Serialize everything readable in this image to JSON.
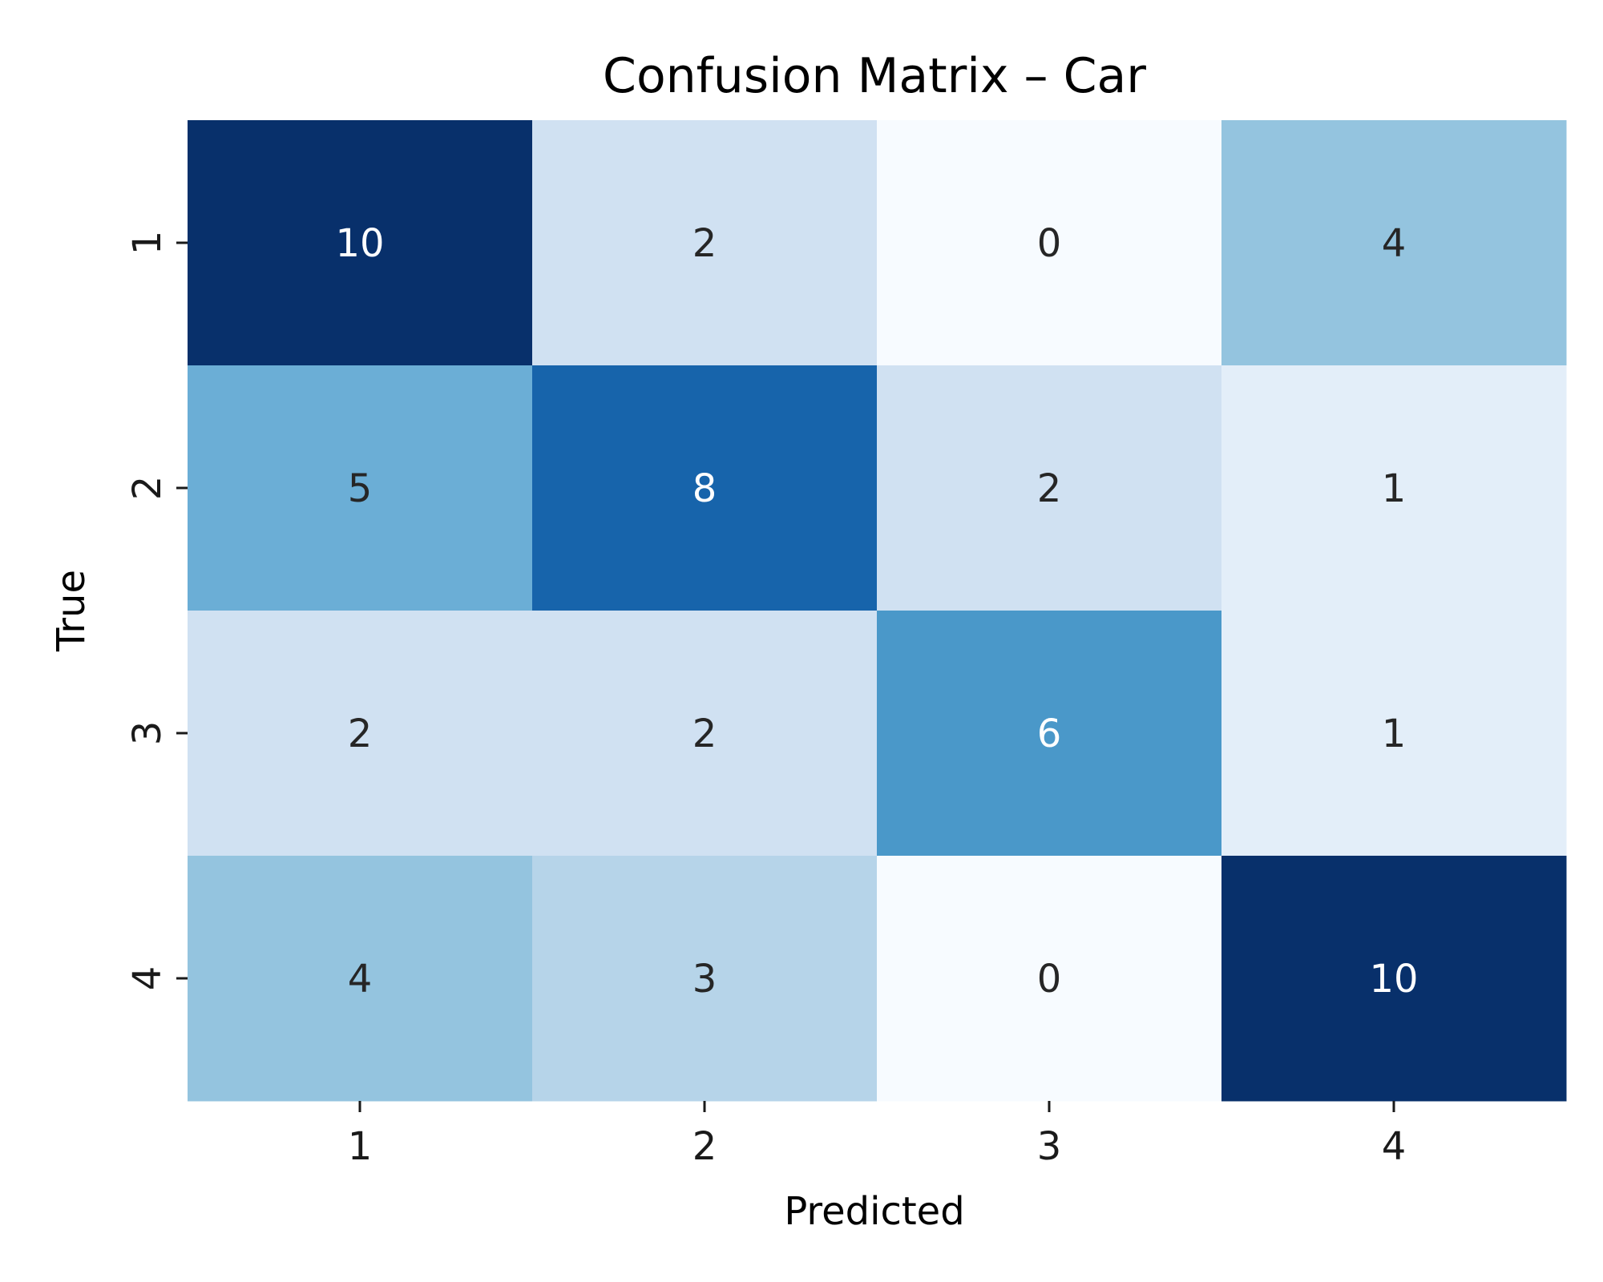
{
  "chart_data": {
    "type": "heatmap",
    "title": "Confusion Matrix – Car",
    "xlabel": "Predicted",
    "ylabel": "True",
    "x_categories": [
      "1",
      "2",
      "3",
      "4"
    ],
    "y_categories": [
      "1",
      "2",
      "3",
      "4"
    ],
    "values": [
      [
        10,
        2,
        0,
        4
      ],
      [
        5,
        8,
        2,
        1
      ],
      [
        2,
        2,
        6,
        1
      ],
      [
        4,
        3,
        0,
        10
      ]
    ],
    "value_range": [
      0,
      10
    ],
    "colormap": "Blues",
    "colorbar": false,
    "annotated": true,
    "grid": false,
    "legend": "none"
  }
}
